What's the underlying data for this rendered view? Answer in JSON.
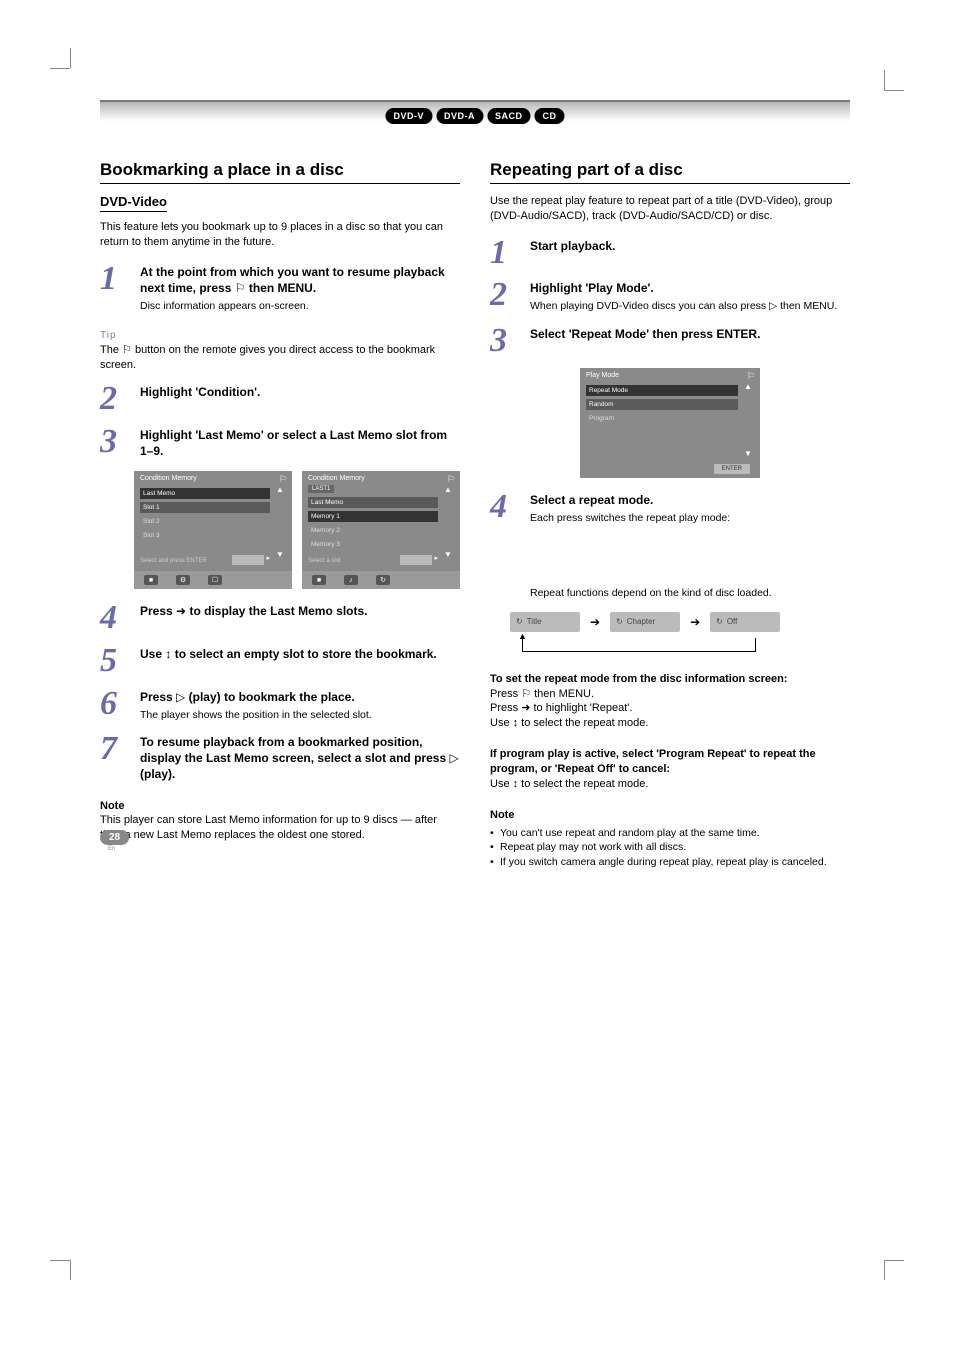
{
  "header": {
    "pills": [
      "DVD-V",
      "DVD-A",
      "SACD",
      "CD"
    ]
  },
  "left": {
    "title": "Bookmarking a place in a disc",
    "subtitle": "DVD-Video",
    "intro": "This feature lets you bookmark up to 9 places in a disc so that you can return to them anytime in the future.",
    "steps": [
      {
        "n": "1",
        "body": "<b>At the point from which you want to resume playback next time, press</b> <span class='glyph'>⚐</span> <b>then MENU.</b>",
        "sub": "Disc information appears on-screen.",
        "tip": {
          "head": "Tip",
          "body": "The <span class='glyph'>⚐</span> button on the remote gives you direct access to the bookmark screen."
        }
      },
      {
        "n": "2",
        "body": "<b>Highlight 'Condition'.</b>"
      },
      {
        "n": "3",
        "body": "<b>Highlight 'Last Memo' or select a Last Memo slot from 1–9.</b>"
      },
      {
        "n": "4",
        "body": "<b>Press</b> <span class='glyph'>➜</span> <b>to display the Last Memo slots.</b>"
      },
      {
        "n": "5",
        "body": "<b>Use</b> <span class='glyph'>↕</span> <b>to select an empty slot to store the bookmark.</b>"
      },
      {
        "n": "6",
        "body": "<b>Press</b> <span class='glyph'>▷</span> <b>(play) to bookmark the place.</b>",
        "sub": "The player shows the position in the selected slot."
      },
      {
        "n": "7",
        "body": "<b>To resume playback from a bookmarked position, display the Last Memo screen, select a slot and press</b> <span class='glyph'>▷</span> <b>(play).</b>"
      }
    ],
    "note": {
      "head": "Note",
      "body": "This player can store Last Memo information for up to 9 discs — after that, a new Last Memo replaces the oldest one stored."
    },
    "osd": [
      {
        "title": "Condition Memory",
        "items": [
          "Last Memo",
          "Slot 1",
          "Slot 2",
          "Slot 3"
        ],
        "sel": 0,
        "dark": 1,
        "hint": "Select and press ENTER",
        "slot": true,
        "bottom": [
          "■",
          "⚙",
          "☐"
        ]
      },
      {
        "title": "Condition Memory",
        "pretab": "LAST1",
        "items": [
          "Last Memo",
          "Memory 1",
          "Memory 2",
          "Memory 3"
        ],
        "sel": 1,
        "dark": 0,
        "hint": "Select a slot",
        "slot": true,
        "bottom": [
          "■",
          "♪",
          "↻"
        ]
      }
    ],
    "osd_common": {
      "angle_icon": "⚐",
      "scroll_up": "▲",
      "scroll_down": "▼",
      "right_arrow": "▸"
    }
  },
  "right": {
    "title": "Repeating part of a disc",
    "intro": "Use the repeat play feature to repeat part of a title (DVD-Video), group (DVD-Audio/SACD), track (DVD-Audio/SACD/CD) or disc.",
    "steps": [
      {
        "n": "1",
        "body": "<b>Start playback.</b>"
      },
      {
        "n": "2",
        "body": "<b>Highlight 'Play Mode'.</b>",
        "sub": "When playing DVD-Video discs you can also press <span class='glyph'>▷</span> then MENU."
      },
      {
        "n": "3",
        "body": "<b>Select 'Repeat Mode' then press ENTER.</b>"
      },
      {
        "n": "4",
        "body": "<b>Select a repeat mode.</b>",
        "sub": "Each press switches the repeat play mode:",
        "sub2": "Repeat functions depend on the kind of disc loaded."
      }
    ],
    "osd": {
      "title": "Play Mode",
      "angle_icon": "⚐",
      "items": [
        "Repeat Mode",
        "Random",
        "Program"
      ],
      "sel": 0,
      "dark": 1,
      "scroll_up": "▲",
      "scroll_down": "▼",
      "enter": "ENTER"
    },
    "repeat_boxes": [
      {
        "icon": "↻",
        "label": "Title"
      },
      {
        "icon": "↻",
        "label": "Chapter"
      },
      {
        "icon": "↻",
        "label": "Off"
      }
    ],
    "extra": {
      "head": "To set the repeat mode from the disc information screen:",
      "lines": [
        "Press <span class='glyph'>⚐</span> then MENU.",
        "Press <span class='glyph'>➜</span> to highlight 'Repeat'.",
        "Use <span class='glyph'>↕</span> to select the repeat mode."
      ]
    },
    "extra2": {
      "head": "If program play is active, select 'Program Repeat' to repeat the program, or 'Repeat Off' to cancel:",
      "line": "Use <span class='glyph'>↕</span> to select the repeat mode."
    },
    "note": {
      "head": "Note",
      "bullets": [
        "You can't use repeat and random play at the same time.",
        "Repeat play may not work with all discs.",
        "If you switch camera angle during repeat play, repeat play is canceled."
      ]
    }
  },
  "page_number": "28",
  "page_label": "En",
  "colors": {
    "step_num": "#6b6baa",
    "osd_bg": "#8a8a8a",
    "pill_bg": "#000000",
    "box_bg": "#bbbbbb"
  }
}
